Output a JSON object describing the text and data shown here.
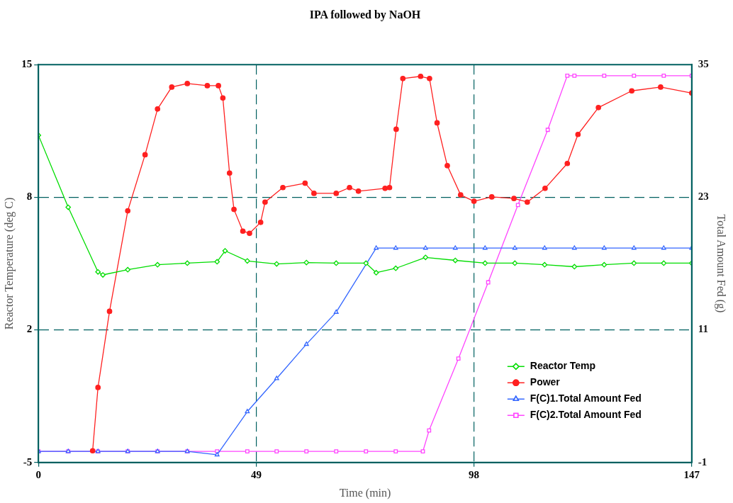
{
  "chart_data": {
    "type": "line",
    "title": "IPA followed by NaOH",
    "xlabel": "Time (min)",
    "ylabel": "Reactor Temperature (deg C)",
    "y2label": "Total Amount Fed (g)",
    "xlim": [
      0,
      147
    ],
    "xticks": [
      0,
      49,
      98,
      147
    ],
    "ylim": [
      -5,
      15
    ],
    "yticks": [
      -5,
      {
        "value": 1.667,
        "label": "2"
      },
      {
        "value": 8.333,
        "label": "8"
      },
      15
    ],
    "y2lim": [
      -1,
      35
    ],
    "y2ticks": [
      -1,
      11,
      23,
      35
    ],
    "grid": true,
    "legend": "bottom right",
    "line_style": "solid",
    "series": [
      {
        "name": "Reactor Temp",
        "color": "#00dd00",
        "marker": "diamond",
        "x": [
          0,
          6.7,
          13.4,
          14.5,
          20.1,
          26.8,
          33.5,
          40.2,
          42,
          47,
          53.6,
          60.3,
          67,
          73.7,
          76,
          80.4,
          87.1,
          93.8,
          100.5,
          107.2,
          113.9,
          120.6,
          127.3,
          134,
          140.7,
          147
        ],
        "values": [
          11.45,
          7.83,
          4.58,
          4.43,
          4.69,
          4.94,
          5.02,
          5.09,
          5.64,
          5.13,
          4.98,
          5.05,
          5.02,
          5.02,
          4.54,
          4.76,
          5.31,
          5.16,
          5.02,
          5.02,
          4.94,
          4.84,
          4.94,
          5.02,
          5.02,
          5.02
        ]
      },
      {
        "name": "Power",
        "color": "#ff2020",
        "marker": "circle",
        "x": [
          12.2,
          13.4,
          16,
          20.1,
          24,
          26.8,
          30,
          33.5,
          38,
          40.5,
          41.5,
          43,
          44,
          46,
          47.5,
          50,
          51,
          55,
          60,
          62,
          67,
          70,
          72,
          78,
          79,
          80.5,
          82,
          86,
          88,
          89.7,
          92,
          95,
          98,
          102,
          107,
          110,
          114,
          119,
          121.4,
          126,
          133.5,
          140,
          147
        ],
        "values": [
          -4.41,
          -1.23,
          2.6,
          7.65,
          10.47,
          12.77,
          13.87,
          14.05,
          13.94,
          13.94,
          13.32,
          9.55,
          7.72,
          6.63,
          6.52,
          7.07,
          8.09,
          8.82,
          9.04,
          8.53,
          8.53,
          8.82,
          8.64,
          8.78,
          8.82,
          11.75,
          14.3,
          14.41,
          14.3,
          12.07,
          9.92,
          8.45,
          8.13,
          8.35,
          8.27,
          8.09,
          8.78,
          10.03,
          11.49,
          12.84,
          13.68,
          13.87,
          13.57
        ]
      },
      {
        "name": "F(C)1.Total Amount Fed",
        "color": "#3366ff",
        "marker": "triangle",
        "axis": "y2",
        "x": [
          0,
          6.7,
          13.4,
          20.1,
          26.8,
          33.5,
          40.2,
          47,
          53.6,
          60.3,
          67,
          76,
          80.4,
          87.1,
          93.8,
          100.5,
          107.2,
          113.9,
          120.6,
          127.3,
          134,
          140.7,
          147
        ],
        "values": [
          0,
          0,
          0,
          0,
          0,
          0,
          -0.3,
          3.6,
          6.6,
          9.7,
          12.6,
          18.4,
          18.4,
          18.4,
          18.4,
          18.4,
          18.4,
          18.4,
          18.4,
          18.4,
          18.4,
          18.4,
          18.4
        ]
      },
      {
        "name": "F(C)2.Total Amount Fed",
        "color": "#ff44ff",
        "marker": "square",
        "axis": "y2",
        "x": [
          0,
          6.7,
          13.4,
          20.1,
          26.8,
          33.5,
          40.2,
          47,
          53.6,
          60.3,
          67,
          73.7,
          80.4,
          86.5,
          87.9,
          94.5,
          101.2,
          107.9,
          114.6,
          119,
          120.6,
          127.3,
          134,
          140.7,
          147
        ],
        "values": [
          0,
          0,
          0,
          0,
          0,
          0,
          0,
          0,
          0,
          0,
          0,
          0,
          0,
          0,
          1.9,
          8.4,
          15.3,
          22.3,
          29.1,
          34,
          34,
          34,
          34,
          34,
          34
        ]
      }
    ]
  }
}
